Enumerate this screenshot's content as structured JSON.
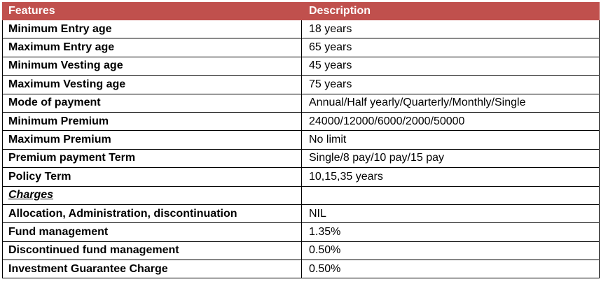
{
  "table": {
    "headers": {
      "features": "Features",
      "description": "Description"
    },
    "rows": [
      {
        "feature": "Minimum Entry age",
        "description": "18 years"
      },
      {
        "feature": "Maximum Entry age",
        "description": "65 years"
      },
      {
        "feature": "Minimum Vesting age",
        "description": "45 years"
      },
      {
        "feature": "Maximum Vesting age",
        "description": "75 years"
      },
      {
        "feature": "Mode of payment",
        "description": "Annual/Half yearly/Quarterly/Monthly/Single"
      },
      {
        "feature": "Minimum Premium",
        "description": "24000/12000/6000/2000/50000"
      },
      {
        "feature": "Maximum Premium",
        "description": "No limit"
      },
      {
        "feature": "Premium payment Term",
        "description": "Single/8 pay/10 pay/15 pay"
      },
      {
        "feature": "Policy Term",
        "description": "10,15,35 years"
      }
    ],
    "section_label": "Charges",
    "charges_rows": [
      {
        "feature": "Allocation, Administration, discontinuation",
        "description": "NIL"
      },
      {
        "feature": "Fund management",
        "description": "1.35%"
      },
      {
        "feature": "Discontinued fund management",
        "description": "0.50%"
      },
      {
        "feature": "Investment Guarantee Charge",
        "description": "0.50%"
      }
    ]
  },
  "colors": {
    "header_background": "#c0504d",
    "header_text": "#ffffff",
    "border": "#000000"
  }
}
